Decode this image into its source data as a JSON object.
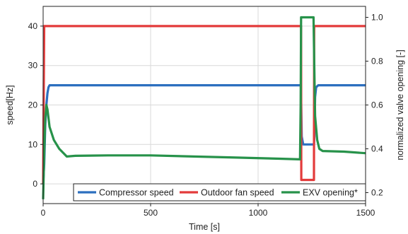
{
  "chart_data": {
    "type": "line",
    "title": "",
    "xlabel": "Time [s]",
    "ylabel_left": "speed[Hz]",
    "ylabel_right": "normalized valve opening [-]",
    "xlim": [
      0,
      1500
    ],
    "ylim_left": [
      -5,
      45
    ],
    "ylim_right": [
      0.15,
      1.05
    ],
    "xticks": [
      0,
      500,
      1000,
      1500
    ],
    "yticks_left": [
      0,
      10,
      20,
      30,
      40
    ],
    "yticks_right": [
      "0.2",
      "0.4",
      "0.6",
      "0.8",
      "1.0"
    ],
    "grid": true,
    "legend_position": "bottom-right",
    "series": [
      {
        "name": "Compressor speed",
        "color": "#2c6fbf",
        "axis": "left",
        "x": [
          0,
          5,
          10,
          15,
          20,
          25,
          30,
          50,
          1199,
          1203,
          1210,
          1260,
          1262,
          1265,
          1270,
          1280,
          1500
        ],
        "y": [
          0,
          5,
          15,
          20,
          23,
          24.5,
          25,
          25,
          25,
          12,
          10,
          10,
          12,
          22,
          24.5,
          25,
          25
        ]
      },
      {
        "name": "Outdoor fan speed",
        "color": "#e33b3b",
        "axis": "left",
        "x": [
          0,
          5,
          10,
          1200,
          1201,
          1260,
          1261,
          1270,
          1500
        ],
        "y": [
          0,
          40,
          40,
          40,
          1,
          1,
          40,
          40,
          40
        ]
      },
      {
        "name": "EXV opening*",
        "color": "#27924a",
        "axis": "right",
        "x": [
          0,
          5,
          10,
          15,
          20,
          25,
          30,
          50,
          75,
          100,
          110,
          150,
          300,
          500,
          700,
          900,
          1100,
          1195,
          1198,
          1200,
          1201,
          1258,
          1262,
          1265,
          1275,
          1285,
          1300,
          1400,
          1500
        ],
        "y": [
          0.17,
          0.38,
          0.54,
          0.6,
          0.58,
          0.54,
          0.5,
          0.44,
          0.4,
          0.375,
          0.365,
          0.368,
          0.37,
          0.37,
          0.365,
          0.36,
          0.355,
          0.352,
          0.6,
          1.0,
          1.0,
          1.0,
          0.75,
          0.55,
          0.44,
          0.4,
          0.39,
          0.387,
          0.38
        ]
      }
    ]
  }
}
